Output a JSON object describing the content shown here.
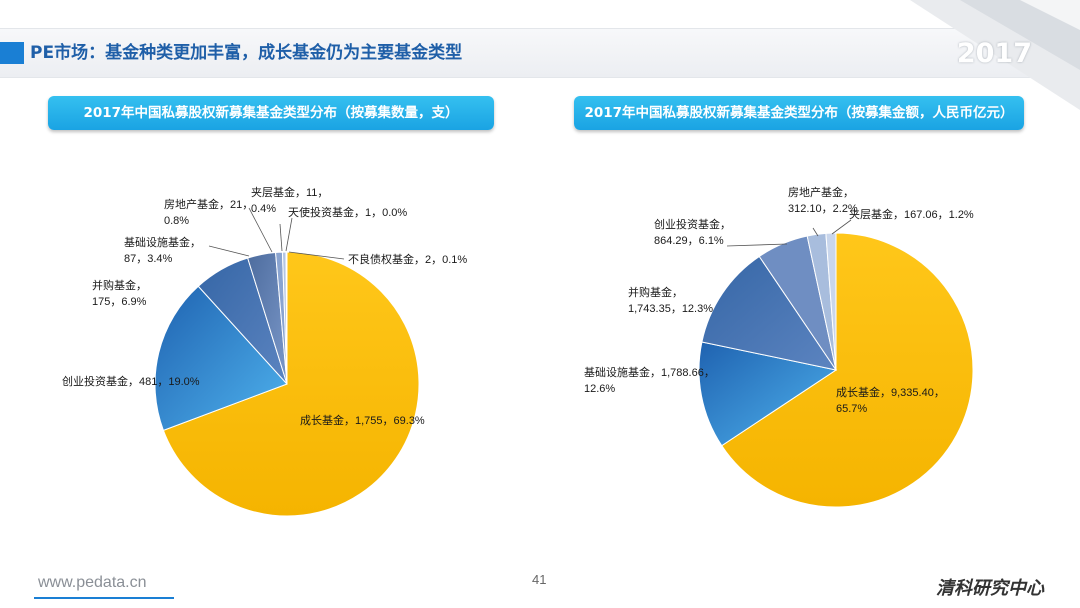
{
  "header": {
    "title": "PE市场：基金种类更加丰富，成长基金仍为主要基金类型",
    "year": "2017"
  },
  "footer": {
    "url": "www.pedata.cn",
    "page": "41",
    "brand": "清科研究中心"
  },
  "colors": {
    "gold": "#FFC000",
    "blue_dark": "#2E75B6",
    "blue_mid": "#4A6FA5",
    "blue_steel": "#6A8CC7",
    "blue_light": "#9DB5DA",
    "blue_pale": "#C7D6EC",
    "accent": "#1A7FD4"
  },
  "chart_data": [
    {
      "type": "pie",
      "title": "2017年中国私募股权新募集基金类型分布（按募集数量，支）",
      "slices": [
        {
          "name": "成长基金",
          "value": 1755,
          "value_text": "1,755",
          "pct": "69.3%"
        },
        {
          "name": "创业投资基金",
          "value": 481,
          "value_text": "481",
          "pct": "19.0%"
        },
        {
          "name": "并购基金",
          "value": 175,
          "value_text": "175",
          "pct": "6.9%"
        },
        {
          "name": "基础设施基金",
          "value": 87,
          "value_text": "87",
          "pct": "3.4%"
        },
        {
          "name": "房地产基金",
          "value": 21,
          "value_text": "21",
          "pct": "0.8%"
        },
        {
          "name": "夹层基金",
          "value": 11,
          "value_text": "11",
          "pct": "0.4%"
        },
        {
          "name": "天使投资基金",
          "value": 1,
          "value_text": "1",
          "pct": "0.0%"
        },
        {
          "name": "不良债权基金",
          "value": 2,
          "value_text": "2",
          "pct": "0.1%"
        }
      ],
      "labels": [
        {
          "line1": "成长基金，1,755，69.3%"
        },
        {
          "line1": "创业投资基金，481，19.0%"
        },
        {
          "line1": "并购基金，",
          "line2": "175，6.9%"
        },
        {
          "line1": "基础设施基金，",
          "line2": "87，3.4%"
        },
        {
          "line1": "房地产基金，21，",
          "line2": "0.8%"
        },
        {
          "line1": "夹层基金，11，",
          "line2": "0.4%"
        },
        {
          "line1": "天使投资基金，1，0.0%"
        },
        {
          "line1": "不良债权基金，2，0.1%"
        }
      ]
    },
    {
      "type": "pie",
      "title": "2017年中国私募股权新募集基金类型分布（按募集金额，人民币亿元）",
      "slices": [
        {
          "name": "成长基金",
          "value": 9335.4,
          "value_text": "9,335.40",
          "pct": "65.7%"
        },
        {
          "name": "基础设施基金",
          "value": 1788.66,
          "value_text": "1,788.66",
          "pct": "12.6%"
        },
        {
          "name": "并购基金",
          "value": 1743.35,
          "value_text": "1,743.35",
          "pct": "12.3%"
        },
        {
          "name": "创业投资基金",
          "value": 864.29,
          "value_text": "864.29",
          "pct": "6.1%"
        },
        {
          "name": "房地产基金",
          "value": 312.1,
          "value_text": "312.10",
          "pct": "2.2%"
        },
        {
          "name": "夹层基金",
          "value": 167.06,
          "value_text": "167.06",
          "pct": "1.2%"
        }
      ],
      "labels": [
        {
          "line1": "成长基金，9,335.40，",
          "line2": "65.7%"
        },
        {
          "line1": "基础设施基金，1,788.66，",
          "line2": "12.6%"
        },
        {
          "line1": "并购基金，",
          "line2": "1,743.35，12.3%"
        },
        {
          "line1": "创业投资基金，",
          "line2": "864.29，6.1%"
        },
        {
          "line1": "房地产基金，",
          "line2": "312.10，2.2%"
        },
        {
          "line1": "夹层基金，167.06，1.2%"
        }
      ]
    }
  ]
}
